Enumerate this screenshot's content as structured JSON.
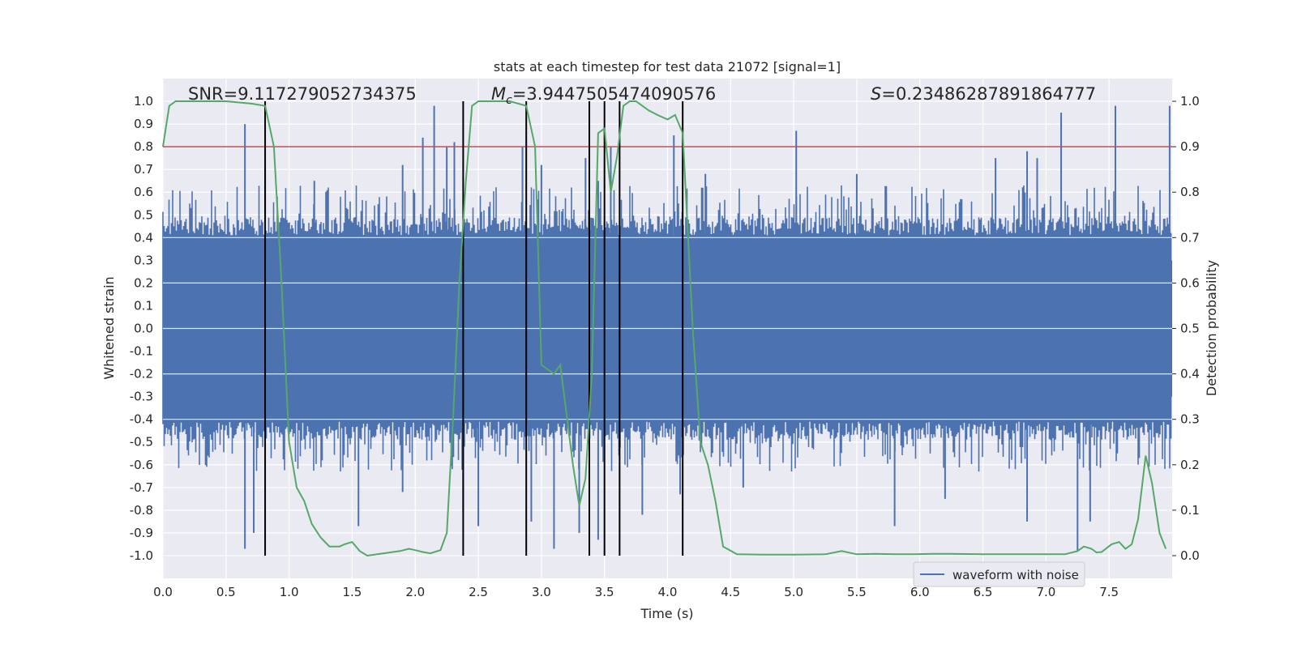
{
  "chart_data": {
    "type": "line",
    "title": "stats at each timestep for test data 21072 [signal=1]",
    "xlabel": "Time (s)",
    "ylabel": "Whitened strain",
    "y2label": "Detection probability",
    "xlim": [
      0.0,
      8.0
    ],
    "ylim": [
      -1.1,
      1.1
    ],
    "y2lim": [
      -0.05,
      1.05
    ],
    "xticks": [
      "0.0",
      "0.5",
      "1.0",
      "1.5",
      "2.0",
      "2.5",
      "3.0",
      "3.5",
      "4.0",
      "4.5",
      "5.0",
      "5.5",
      "6.0",
      "6.5",
      "7.0",
      "7.5"
    ],
    "yticks": [
      "-1.0",
      "-0.9",
      "-0.8",
      "-0.7",
      "-0.6",
      "-0.5",
      "-0.4",
      "-0.3",
      "-0.2",
      "-0.1",
      "0.0",
      "0.1",
      "0.2",
      "0.3",
      "0.4",
      "0.5",
      "0.6",
      "0.7",
      "0.8",
      "0.9",
      "1.0"
    ],
    "y2ticks": [
      "0.0",
      "0.1",
      "0.2",
      "0.3",
      "0.4",
      "0.5",
      "0.6",
      "0.7",
      "0.8",
      "0.9",
      "1.0"
    ],
    "grid": true,
    "annotations": {
      "snr": "SNR=9.117279052734375",
      "mc_prefix": "M",
      "mc_sub": "c",
      "mc_value": "=3.9447505474090576",
      "s_prefix": "S",
      "s_value": "=0.23486287891864777"
    },
    "threshold": 0.8,
    "threshold_color": "#c44e52",
    "event_lines_x": [
      0.81,
      2.38,
      2.88,
      3.38,
      3.5,
      3.62,
      4.12
    ],
    "legend": {
      "entries": [
        "waveform with noise"
      ],
      "placement": "lower-right"
    },
    "series": [
      {
        "name": "waveform with noise",
        "color": "#4c72b0",
        "axis": "left",
        "envelope_upper_typical": 0.45,
        "envelope_lower_typical": -0.45,
        "peaks": [
          [
            0.65,
            0.9
          ],
          [
            0.81,
            0.7
          ],
          [
            1.2,
            0.65
          ],
          [
            1.9,
            0.72
          ],
          [
            2.06,
            0.84
          ],
          [
            2.15,
            0.98
          ],
          [
            2.25,
            0.8
          ],
          [
            2.31,
            0.82
          ],
          [
            2.85,
            0.8
          ],
          [
            3.0,
            0.72
          ],
          [
            3.35,
            0.75
          ],
          [
            3.45,
            0.65
          ],
          [
            3.55,
            0.8
          ],
          [
            4.05,
            0.85
          ],
          [
            4.3,
            0.68
          ],
          [
            5.02,
            0.87
          ],
          [
            5.5,
            0.68
          ],
          [
            6.6,
            0.75
          ],
          [
            6.85,
            0.78
          ],
          [
            6.93,
            0.75
          ],
          [
            7.12,
            0.95
          ],
          [
            7.55,
            0.98
          ],
          [
            7.98,
            0.98
          ]
        ],
        "troughs": [
          [
            0.65,
            -0.97
          ],
          [
            0.72,
            -0.9
          ],
          [
            1.55,
            -0.87
          ],
          [
            1.9,
            -0.72
          ],
          [
            2.38,
            -0.8
          ],
          [
            2.5,
            -0.87
          ],
          [
            2.92,
            -0.85
          ],
          [
            3.1,
            -0.97
          ],
          [
            3.3,
            -0.9
          ],
          [
            3.45,
            -0.93
          ],
          [
            3.8,
            -0.82
          ],
          [
            4.1,
            -0.73
          ],
          [
            4.6,
            -0.7
          ],
          [
            5.8,
            -0.87
          ],
          [
            6.2,
            -0.75
          ],
          [
            6.85,
            -0.85
          ],
          [
            7.25,
            -0.98
          ],
          [
            7.35,
            -0.85
          ]
        ]
      },
      {
        "name": "",
        "color": "#55a868",
        "axis": "right",
        "x": [
          0.0,
          0.05,
          0.1,
          0.3,
          0.5,
          0.7,
          0.81,
          0.88,
          0.94,
          1.0,
          1.06,
          1.12,
          1.18,
          1.25,
          1.32,
          1.4,
          1.44,
          1.5,
          1.56,
          1.62,
          1.75,
          1.88,
          1.95,
          2.0,
          2.06,
          2.12,
          2.2,
          2.25,
          2.3,
          2.35,
          2.4,
          2.45,
          2.5,
          2.6,
          2.75,
          2.88,
          2.95,
          3.0,
          3.05,
          3.1,
          3.15,
          3.25,
          3.3,
          3.35,
          3.4,
          3.45,
          3.5,
          3.55,
          3.6,
          3.65,
          3.7,
          3.75,
          3.85,
          3.92,
          4.0,
          4.06,
          4.12,
          4.2,
          4.26,
          4.32,
          4.38,
          4.44,
          4.55,
          4.75,
          5.0,
          5.25,
          5.38,
          5.5,
          5.65,
          5.8,
          5.95,
          6.1,
          6.25,
          6.5,
          6.75,
          7.0,
          7.15,
          7.25,
          7.3,
          7.36,
          7.4,
          7.44,
          7.52,
          7.58,
          7.63,
          7.68,
          7.73,
          7.79,
          7.84,
          7.9,
          7.95
        ],
        "values": [
          0.9,
          0.99,
          1.0,
          1.0,
          1.0,
          0.995,
          0.99,
          0.9,
          0.6,
          0.25,
          0.15,
          0.12,
          0.07,
          0.04,
          0.02,
          0.02,
          0.025,
          0.03,
          0.01,
          0.0,
          0.005,
          0.01,
          0.015,
          0.012,
          0.008,
          0.005,
          0.012,
          0.05,
          0.3,
          0.6,
          0.82,
          0.99,
          1.0,
          1.0,
          1.0,
          0.99,
          0.9,
          0.42,
          0.41,
          0.4,
          0.42,
          0.2,
          0.11,
          0.17,
          0.4,
          0.93,
          0.94,
          0.8,
          0.88,
          0.99,
          1.0,
          1.0,
          0.98,
          0.97,
          0.96,
          0.97,
          0.93,
          0.5,
          0.25,
          0.2,
          0.12,
          0.02,
          0.003,
          0.002,
          0.002,
          0.003,
          0.01,
          0.003,
          0.004,
          0.003,
          0.003,
          0.004,
          0.004,
          0.003,
          0.003,
          0.003,
          0.003,
          0.01,
          0.02,
          0.015,
          0.007,
          0.008,
          0.025,
          0.03,
          0.015,
          0.025,
          0.08,
          0.22,
          0.16,
          0.05,
          0.015
        ]
      }
    ]
  }
}
